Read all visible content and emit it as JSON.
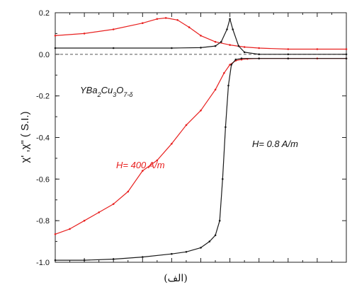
{
  "chart_data": {
    "type": "line",
    "ylabel": "χ' ,χ\" ( S.I.)",
    "ylim": [
      -1.0,
      0.2
    ],
    "yticks": [
      "0.2",
      "0.0",
      "-0.2",
      "-0.4",
      "-0.6",
      "-0.8",
      "-1.0"
    ],
    "xlim": [
      0,
      100
    ],
    "x_tick_labels_shown": false,
    "zero_line": "dashed",
    "annotations": {
      "compound_main": "YBa",
      "compound_sub1": "2",
      "compound_mid1": "Cu",
      "compound_sub2": "3",
      "compound_mid2": "O",
      "compound_sub3": "7-δ",
      "series_red": "H= 400 A/m",
      "series_black": "H= 0.8 A/m"
    },
    "series": [
      {
        "name": "H= 400 A/m",
        "color": "#e8201f",
        "component": "chi_imag",
        "x": [
          0,
          10,
          20,
          30,
          35,
          38,
          42,
          46,
          50,
          55,
          60,
          65,
          70,
          80,
          90,
          100
        ],
        "y": [
          0.09,
          0.1,
          0.12,
          0.15,
          0.17,
          0.175,
          0.165,
          0.13,
          0.09,
          0.06,
          0.045,
          0.035,
          0.03,
          0.025,
          0.025,
          0.025
        ]
      },
      {
        "name": "H= 400 A/m",
        "color": "#e8201f",
        "component": "chi_real",
        "x": [
          0,
          5,
          10,
          15,
          20,
          25,
          30,
          35,
          40,
          45,
          50,
          55,
          58,
          60,
          62,
          64,
          66,
          70,
          80,
          90,
          100
        ],
        "y": [
          -0.865,
          -0.84,
          -0.8,
          -0.76,
          -0.72,
          -0.66,
          -0.56,
          -0.51,
          -0.43,
          -0.34,
          -0.27,
          -0.17,
          -0.09,
          -0.05,
          -0.03,
          -0.025,
          -0.022,
          -0.02,
          -0.02,
          -0.02,
          -0.02
        ]
      },
      {
        "name": "H= 0.8 A/m",
        "color": "#1a1a1a",
        "component": "chi_imag",
        "x": [
          0,
          20,
          40,
          50,
          55,
          57,
          59,
          60,
          61,
          63,
          65,
          70,
          80,
          100
        ],
        "y": [
          0.03,
          0.03,
          0.03,
          0.032,
          0.04,
          0.06,
          0.12,
          0.17,
          0.12,
          0.04,
          0.01,
          0.0,
          0.0,
          0.0
        ]
      },
      {
        "name": "H= 0.8 A/m",
        "color": "#1a1a1a",
        "component": "chi_real",
        "x": [
          0,
          10,
          20,
          30,
          40,
          45,
          50,
          53,
          55,
          56.5,
          57.5,
          58.5,
          59.5,
          60.5,
          62,
          64,
          70,
          80,
          100
        ],
        "y": [
          -0.99,
          -0.99,
          -0.985,
          -0.975,
          -0.96,
          -0.95,
          -0.93,
          -0.9,
          -0.87,
          -0.8,
          -0.6,
          -0.35,
          -0.15,
          -0.05,
          -0.025,
          -0.02,
          -0.02,
          -0.02,
          -0.02
        ]
      }
    ]
  },
  "caption": "(الف)"
}
